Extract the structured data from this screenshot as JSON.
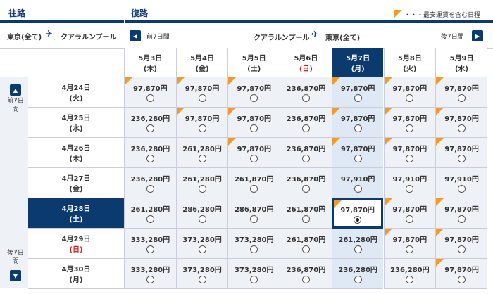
{
  "header": {
    "outbound": "往路",
    "return": "復路",
    "legend": "・・・最安運賃を含む日程"
  },
  "outbound_route": {
    "from": "東京(全て)",
    "to": "クアラルンプール"
  },
  "return_route": {
    "prev": "前7日間",
    "from": "クアラルンプール",
    "to": "東京(全て)",
    "next": "後7日間"
  },
  "side": {
    "prev": "前7日間",
    "next": "後7日間"
  },
  "selected": {
    "row": 4,
    "column": 4
  },
  "columns": [
    {
      "date": "5月3日",
      "day": "(木)",
      "holiday": false
    },
    {
      "date": "5月4日",
      "day": "(金)",
      "holiday": false
    },
    {
      "date": "5月5日",
      "day": "(土)",
      "holiday": false
    },
    {
      "date": "5月6日",
      "day": "(日)",
      "holiday": true
    },
    {
      "date": "5月7日",
      "day": "(月)",
      "holiday": false
    },
    {
      "date": "5月8日",
      "day": "(火)",
      "holiday": false
    },
    {
      "date": "5月9日",
      "day": "(水)",
      "holiday": false
    }
  ],
  "rows": [
    {
      "date": "4月24日",
      "day": "(火)",
      "holiday": false
    },
    {
      "date": "4月25日",
      "day": "(水)",
      "holiday": false
    },
    {
      "date": "4月26日",
      "day": "(木)",
      "holiday": false
    },
    {
      "date": "4月27日",
      "day": "(金)",
      "holiday": false
    },
    {
      "date": "4月28日",
      "day": "(土)",
      "holiday": false
    },
    {
      "date": "4月29日",
      "day": "(日)",
      "holiday": true
    },
    {
      "date": "4月30日",
      "day": "(月)",
      "holiday": false
    }
  ],
  "cells": [
    [
      {
        "price": "97,870円",
        "lowest": true
      },
      {
        "price": "97,870円",
        "lowest": true
      },
      {
        "price": "97,870円",
        "lowest": true
      },
      {
        "price": "236,870円",
        "lowest": false
      },
      {
        "price": "97,870円",
        "lowest": true
      },
      {
        "price": "97,870円",
        "lowest": true
      },
      {
        "price": "97,870円",
        "lowest": true
      }
    ],
    [
      {
        "price": "236,280円",
        "lowest": false
      },
      {
        "price": "97,870円",
        "lowest": true
      },
      {
        "price": "97,870円",
        "lowest": true
      },
      {
        "price": "236,870円",
        "lowest": false
      },
      {
        "price": "97,870円",
        "lowest": true
      },
      {
        "price": "97,870円",
        "lowest": true
      },
      {
        "price": "97,870円",
        "lowest": true
      }
    ],
    [
      {
        "price": "236,280円",
        "lowest": false
      },
      {
        "price": "261,280円",
        "lowest": false
      },
      {
        "price": "97,870円",
        "lowest": true
      },
      {
        "price": "236,870円",
        "lowest": false
      },
      {
        "price": "97,870円",
        "lowest": true
      },
      {
        "price": "97,870円",
        "lowest": true
      },
      {
        "price": "97,870円",
        "lowest": true
      }
    ],
    [
      {
        "price": "236,280円",
        "lowest": false
      },
      {
        "price": "261,280円",
        "lowest": false
      },
      {
        "price": "261,870円",
        "lowest": false
      },
      {
        "price": "236,870円",
        "lowest": false
      },
      {
        "price": "97,910円",
        "lowest": false
      },
      {
        "price": "97,910円",
        "lowest": false
      },
      {
        "price": "97,910円",
        "lowest": false
      }
    ],
    [
      {
        "price": "261,280円",
        "lowest": false
      },
      {
        "price": "286,280円",
        "lowest": false
      },
      {
        "price": "286,870円",
        "lowest": false
      },
      {
        "price": "261,870円",
        "lowest": false
      },
      {
        "price": "97,870円",
        "lowest": true
      },
      {
        "price": "97,870円",
        "lowest": true
      },
      {
        "price": "97,870円",
        "lowest": true
      }
    ],
    [
      {
        "price": "333,280円",
        "lowest": false
      },
      {
        "price": "373,280円",
        "lowest": false
      },
      {
        "price": "373,280円",
        "lowest": false
      },
      {
        "price": "261,870円",
        "lowest": false
      },
      {
        "price": "261,280円",
        "lowest": false
      },
      {
        "price": "97,870円",
        "lowest": true
      },
      {
        "price": "97,870円",
        "lowest": true
      }
    ],
    [
      {
        "price": "333,280円",
        "lowest": false
      },
      {
        "price": "373,280円",
        "lowest": false
      },
      {
        "price": "373,280円",
        "lowest": false
      },
      {
        "price": "236,870円",
        "lowest": false
      },
      {
        "price": "236,280円",
        "lowest": false
      },
      {
        "price": "236,280円",
        "lowest": false
      },
      {
        "price": "97,870円",
        "lowest": true
      }
    ]
  ]
}
